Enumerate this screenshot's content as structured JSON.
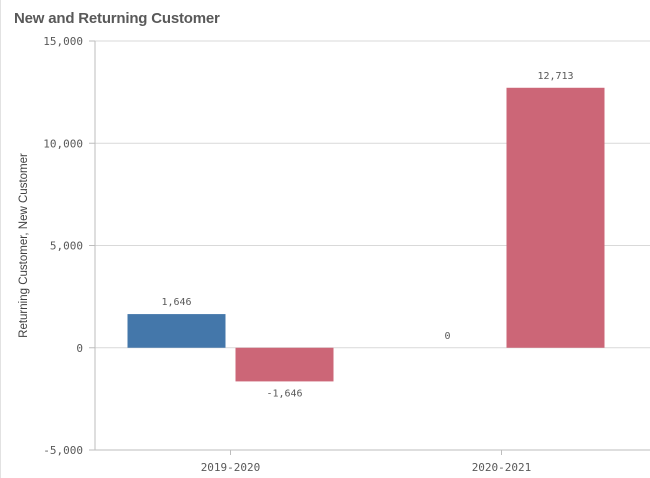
{
  "chart_data": {
    "type": "bar",
    "title": "New and Returning Customer",
    "ylabel": "Returning Customer, New Customer",
    "xlabel": "",
    "categories": [
      "2019-2020",
      "2020-2021"
    ],
    "series": [
      {
        "name": "Returning Customer",
        "values": [
          1646,
          0
        ],
        "color": "#4477aa",
        "labels": [
          "1,646",
          "0"
        ]
      },
      {
        "name": "New Customer",
        "values": [
          -1646,
          12713
        ],
        "color": "#cc6677",
        "labels": [
          "-1,646",
          "12,713"
        ]
      }
    ],
    "ylim": [
      -5000,
      15000
    ],
    "yticks": [
      15000,
      10000,
      5000,
      0,
      -5000
    ],
    "ytick_labels": [
      "15,000",
      "10,000",
      "5,000",
      "0",
      "-5,000"
    ],
    "grid": true,
    "legend": "none"
  }
}
